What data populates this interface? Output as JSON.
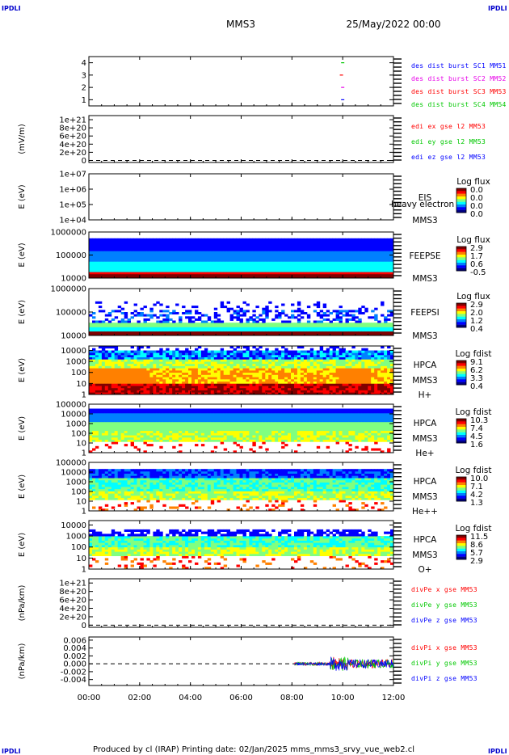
{
  "corner_label": "IPDLI",
  "header": {
    "title": "MMS3",
    "date": "25/May/2022 00:00"
  },
  "footer": {
    "text": "Produced by cl (IRAP)   Printing date: 02/Jan/2025   mms_mms3_srvy_vue_web2.cl"
  },
  "colors": {
    "blue": "#0000ff",
    "magenta": "#e800e8",
    "red": "#ff0000",
    "green": "#00c800",
    "black": "#000000",
    "colorbar": [
      "#800000",
      "#ff0000",
      "#ff8000",
      "#ffff00",
      "#80ff80",
      "#00ffff",
      "#0080ff",
      "#0000ff",
      "#000080"
    ]
  },
  "chart_data": {
    "type": "spectrogram-stack",
    "x_ticks": [
      "00:00",
      "02:00",
      "04:00",
      "06:00",
      "08:00",
      "10:00",
      "12:00"
    ],
    "x_range_hours": [
      0,
      12
    ],
    "panels": [
      {
        "id": "dist",
        "kind": "line",
        "ylabel": "",
        "yticks": [
          "4",
          "3",
          "2",
          "1"
        ],
        "ytick_vals": [
          4,
          3,
          2,
          1
        ],
        "ylim": [
          0.5,
          4.5
        ],
        "legend": [
          {
            "text": "des dist burst SC1 MM51",
            "color": "blue"
          },
          {
            "text": "des dist burst SC2 MM52",
            "color": "magenta"
          },
          {
            "text": "des dist burst SC3 MM53",
            "color": "red"
          },
          {
            "text": "des dist burst SC4 MM54",
            "color": "green"
          }
        ],
        "marks": [
          {
            "x": 10.0,
            "y": 4,
            "color": "green"
          },
          {
            "x": 9.95,
            "y": 3,
            "color": "red"
          },
          {
            "x": 10.0,
            "y": 2,
            "color": "magenta"
          },
          {
            "x": 10.0,
            "y": 1,
            "color": "blue"
          }
        ]
      },
      {
        "id": "edi",
        "kind": "line",
        "ylabel": "(mV/m)",
        "yticks": [
          "1e+21",
          "8e+20",
          "6e+20",
          "4e+20",
          "2e+20",
          "0"
        ],
        "ytick_vals": [
          10,
          8,
          6,
          4,
          2,
          0
        ],
        "ylim": [
          -0.5,
          11
        ],
        "dashed_zero": true,
        "legend": [
          {
            "text": "edi ex gse l2 MM53",
            "color": "red"
          },
          {
            "text": "edi ey gse l2 MM53",
            "color": "green"
          },
          {
            "text": "edi ez gse l2 MM53",
            "color": "blue"
          }
        ]
      },
      {
        "id": "eis",
        "kind": "spectrogram",
        "ylabel": "E (eV)",
        "yticks": [
          "1e+07",
          "1e+06",
          "1e+05",
          "1e+04"
        ],
        "ytick_vals": [
          7,
          6,
          5,
          4
        ],
        "ylim": [
          4,
          7
        ],
        "labels": [
          "EIS",
          "heavy electron to",
          "MMS3"
        ],
        "cb_title": "Log flux",
        "cb_ticks": [
          "0.0",
          "0.0",
          "0.0",
          "0.0"
        ]
      },
      {
        "id": "feepse",
        "kind": "spectrogram",
        "ylabel": "E (eV)",
        "yticks": [
          "1000000",
          "100000",
          "10000"
        ],
        "ytick_vals": [
          6,
          5,
          4
        ],
        "ylim": [
          4,
          6
        ],
        "labels": [
          "FEEPSE",
          "MMS3"
        ],
        "cb_title": "Log flux",
        "cb_ticks": [
          "2.9",
          "1.7",
          "0.6",
          "-0.5"
        ]
      },
      {
        "id": "feepsi",
        "kind": "spectrogram",
        "ylabel": "E (eV)",
        "yticks": [
          "1000000",
          "100000",
          "10000"
        ],
        "ytick_vals": [
          6,
          5,
          4
        ],
        "ylim": [
          4,
          6
        ],
        "labels": [
          "FEEPSI",
          "MMS3"
        ],
        "cb_title": "Log flux",
        "cb_ticks": [
          "2.9",
          "2.0",
          "1.2",
          "0.4"
        ]
      },
      {
        "id": "hpca_h",
        "kind": "spectrogram",
        "ylabel": "E (eV)",
        "yticks": [
          "10000",
          "1000",
          "100",
          "10",
          "1"
        ],
        "ytick_vals": [
          4,
          3,
          2,
          1,
          0
        ],
        "ylim": [
          0,
          4.4
        ],
        "labels": [
          "HPCA",
          "MMS3",
          "H+"
        ],
        "cb_title": "Log fdist",
        "cb_ticks": [
          "9.1",
          "6.2",
          "3.3",
          "0.4"
        ]
      },
      {
        "id": "hpca_he",
        "kind": "spectrogram",
        "ylabel": "E (eV)",
        "yticks": [
          "100000",
          "10000",
          "1000",
          "100",
          "10",
          "1"
        ],
        "ytick_vals": [
          5,
          4,
          3,
          2,
          1,
          0
        ],
        "ylim": [
          0,
          5
        ],
        "labels": [
          "HPCA",
          "MMS3",
          "He+"
        ],
        "cb_title": "Log fdist",
        "cb_ticks": [
          "10.3",
          "7.4",
          "4.5",
          "1.6"
        ]
      },
      {
        "id": "hpca_hepp",
        "kind": "spectrogram",
        "ylabel": "E (eV)",
        "yticks": [
          "100000",
          "10000",
          "1000",
          "100",
          "10",
          "1"
        ],
        "ytick_vals": [
          5,
          4,
          3,
          2,
          1,
          0
        ],
        "ylim": [
          0,
          5
        ],
        "labels": [
          "HPCA",
          "MMS3",
          "He++"
        ],
        "cb_title": "Log fdist",
        "cb_ticks": [
          "10.0",
          "7.1",
          "4.2",
          "1.3"
        ]
      },
      {
        "id": "hpca_o",
        "kind": "spectrogram",
        "ylabel": "E (eV)",
        "yticks": [
          "10000",
          "1000",
          "100",
          "10",
          "1"
        ],
        "ytick_vals": [
          4,
          3,
          2,
          1,
          0
        ],
        "ylim": [
          0,
          4.4
        ],
        "labels": [
          "HPCA",
          "MMS3",
          "O+"
        ],
        "cb_title": "Log fdist",
        "cb_ticks": [
          "11.5",
          "8.6",
          "5.7",
          "2.9"
        ]
      },
      {
        "id": "divpe",
        "kind": "line",
        "ylabel": "(nPa/km)",
        "yticks": [
          "1e+21",
          "8e+20",
          "6e+20",
          "4e+20",
          "2e+20",
          "0"
        ],
        "ytick_vals": [
          10,
          8,
          6,
          4,
          2,
          0
        ],
        "ylim": [
          -0.5,
          11
        ],
        "dashed_zero": true,
        "legend": [
          {
            "text": "divPe x gse MM53",
            "color": "red"
          },
          {
            "text": "divPe y gse MM53",
            "color": "green"
          },
          {
            "text": "divPe z gse MM53",
            "color": "blue"
          }
        ]
      },
      {
        "id": "divpi",
        "kind": "line",
        "ylabel": "(nPa/km)",
        "yticks": [
          "0.006",
          "0.004",
          "0.002",
          "0.000",
          "-0.002",
          "-0.004"
        ],
        "ytick_vals": [
          0.006,
          0.004,
          0.002,
          0,
          -0.002,
          -0.004
        ],
        "ylim": [
          -0.0055,
          0.0068
        ],
        "dashed_zero": true,
        "data_start_hour": 8.1,
        "legend": [
          {
            "text": "divPi x gse MM53",
            "color": "red"
          },
          {
            "text": "divPi y gse MM53",
            "color": "green"
          },
          {
            "text": "divPi z gse MM53",
            "color": "blue"
          }
        ]
      }
    ]
  }
}
